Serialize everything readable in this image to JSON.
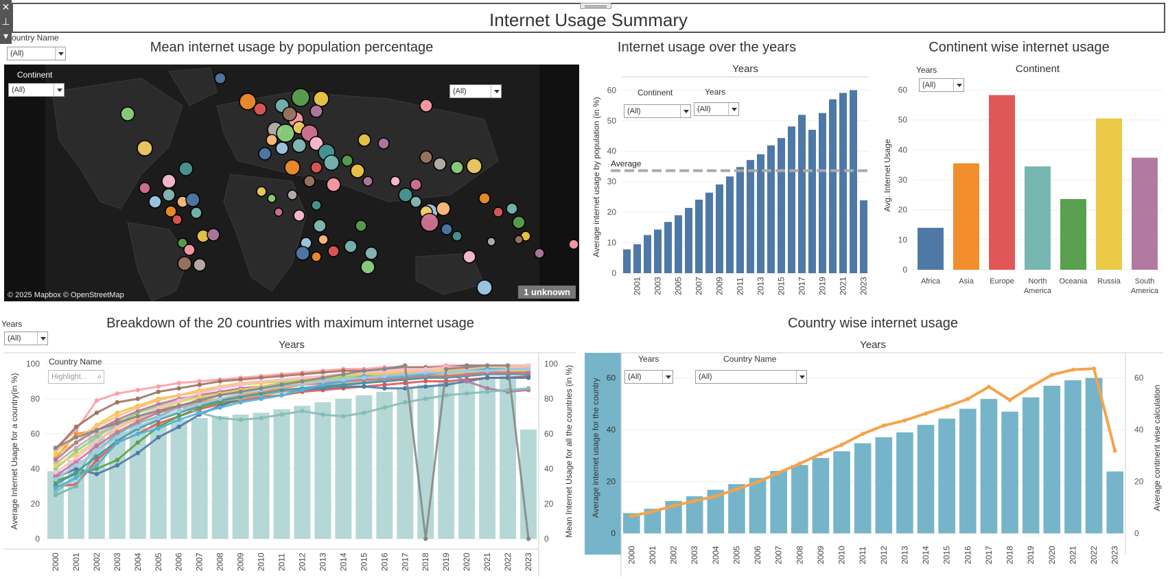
{
  "dashboard": {
    "title": "Internet Usage Summary"
  },
  "filters": {
    "country_name_label": "ountry Name",
    "continent_label": "Continent",
    "years_label": "Years",
    "all_value": "(All)",
    "highlight_placeholder": "Highlight..."
  },
  "map_sheet": {
    "title": "Mean internet usage by population percentage",
    "attribution": "© 2025 Mapbox © OpenStreetMap",
    "unknown_badge": "1 unknown"
  },
  "years_sheet": {
    "title": "Internet usage over the years",
    "header": "Years",
    "ylabel": "Average internet usage by population (in %)",
    "ref_line_label": "Average",
    "continent_filter_label": "Continent",
    "years_filter_label": "Years"
  },
  "continent_sheet": {
    "title": "Continent wise internet usage",
    "header": "Continent",
    "ylabel": "Avg. Internet Usage",
    "years_filter_label": "Years"
  },
  "top20_sheet": {
    "title": "Breakdown of the 20 countries with maximum internet usage",
    "header": "Years",
    "ylabel_left": "Average Internet Usage for a country(in %)",
    "ylabel_right": "Mean Internet Usage for all the countries (in %)",
    "years_filter_label": "Years",
    "country_filter_label": "Country Name"
  },
  "country_sheet": {
    "title": "Country wise internet usage",
    "header": "Years",
    "ylabel_left": "Average internet usage for the country",
    "ylabel_right": "Average continent wise calculation",
    "years_filter_label": "Years",
    "country_filter_label": "Country Name"
  },
  "colors": {
    "bar_blue": "#4e79a7",
    "bar_teal": "#76b5c9",
    "bar_pale_teal": "#b5d8d6",
    "line_orange": "#f5a34b",
    "ref_line": "#aaaaaa",
    "map_bg": "#111111",
    "map_land": "#2b2b2b"
  },
  "chart_data": [
    {
      "id": "years",
      "type": "bar",
      "categories": [
        "2000",
        "2001",
        "2002",
        "2003",
        "2004",
        "2005",
        "2006",
        "2007",
        "2008",
        "2009",
        "2010",
        "2011",
        "2012",
        "2013",
        "2014",
        "2015",
        "2016",
        "2017",
        "2018",
        "2019",
        "2020",
        "2021",
        "2022",
        "2023"
      ],
      "tick_labels": [
        "2001",
        "2003",
        "2005",
        "2007",
        "2009",
        "2011",
        "2013",
        "2015",
        "2017",
        "2019",
        "2021",
        "2023"
      ],
      "values": [
        7.8,
        9.5,
        12.5,
        14.3,
        16.8,
        19.0,
        21.4,
        24.1,
        26.4,
        29.1,
        31.7,
        34.8,
        37.1,
        39.0,
        41.9,
        44.3,
        48.1,
        51.9,
        47.0,
        52.5,
        57.0,
        59.1,
        60.0,
        23.9
      ],
      "average": 33.6,
      "ylim": [
        0,
        63
      ],
      "yticks": [
        0,
        10,
        20,
        30,
        40,
        50,
        60
      ],
      "grid": true
    },
    {
      "id": "continent",
      "type": "bar",
      "categories": [
        "Africa",
        "Asia",
        "Europe",
        "North America",
        "Oceania",
        "Russia",
        "South America"
      ],
      "values": [
        14.0,
        35.5,
        58.3,
        34.5,
        23.6,
        50.5,
        37.4
      ],
      "colors": [
        "#4e79a7",
        "#f28e2b",
        "#e15759",
        "#76b7b2",
        "#59a14f",
        "#edc948",
        "#b07aa1"
      ],
      "ylim": [
        0,
        63
      ],
      "yticks": [
        0,
        10,
        20,
        30,
        40,
        50,
        60
      ],
      "grid": true
    },
    {
      "id": "top20",
      "type": "bar",
      "categories": [
        "2000",
        "2001",
        "2002",
        "2003",
        "2004",
        "2005",
        "2006",
        "2007",
        "2008",
        "2009",
        "2010",
        "2011",
        "2012",
        "2013",
        "2014",
        "2015",
        "2016",
        "2017",
        "2018",
        "2019",
        "2020",
        "2021",
        "2022",
        "2023"
      ],
      "bars": [
        38.7,
        45,
        59,
        62,
        66,
        67,
        68,
        69,
        70,
        71,
        72,
        74,
        76,
        78,
        80,
        82,
        84,
        86,
        88,
        90,
        91,
        92,
        93,
        62.5
      ],
      "series": [
        {
          "color": "#e15759",
          "values": [
            30,
            31,
            45,
            55,
            60,
            66,
            70,
            74,
            77,
            79,
            81,
            82,
            84,
            85,
            86,
            87,
            88,
            89,
            90,
            90,
            91,
            92,
            92,
            93
          ]
        },
        {
          "color": "#4e79a7",
          "values": [
            35,
            40,
            37,
            42,
            49,
            58,
            64,
            71,
            76,
            80,
            82,
            84,
            85,
            86,
            87,
            87,
            86,
            86,
            87,
            88,
            90,
            92,
            92,
            92
          ]
        },
        {
          "color": "#f28e2b",
          "values": [
            46,
            60,
            62,
            67,
            70,
            73,
            75,
            78,
            80,
            82,
            84,
            86,
            88,
            89,
            90,
            91,
            92,
            93,
            94,
            94,
            95,
            96,
            96,
            96
          ]
        },
        {
          "color": "#59a14f",
          "values": [
            33,
            37,
            40,
            45,
            55,
            64,
            70,
            75,
            78,
            80,
            82,
            84,
            86,
            87,
            88,
            89,
            90,
            91,
            92,
            93,
            94,
            95,
            95,
            95
          ]
        },
        {
          "color": "#76b7b2",
          "values": [
            25,
            30,
            50,
            60,
            66,
            70,
            75,
            80,
            83,
            85,
            87,
            88,
            89,
            90,
            91,
            92,
            93,
            93,
            94,
            94,
            95,
            96,
            96,
            97
          ]
        },
        {
          "color": "#edc948",
          "values": [
            48,
            55,
            65,
            72,
            76,
            80,
            82,
            84,
            86,
            88,
            89,
            90,
            91,
            92,
            93,
            94,
            94,
            95,
            95,
            96,
            96,
            97,
            97,
            97
          ]
        },
        {
          "color": "#ff9da7",
          "values": [
            52,
            62,
            79,
            83,
            85,
            87,
            89,
            90,
            91,
            92,
            93,
            94,
            95,
            96,
            97,
            97,
            98,
            98,
            98,
            99,
            99,
            99,
            99,
            99
          ]
        },
        {
          "color": "#9c755f",
          "values": [
            51,
            64,
            72,
            78,
            80,
            84,
            86,
            88,
            90,
            91,
            92,
            93,
            94,
            95,
            96,
            96,
            97,
            98,
            98,
            98,
            99,
            99,
            99,
            99
          ]
        },
        {
          "color": "#8cd17d",
          "values": [
            40,
            50,
            58,
            66,
            72,
            76,
            79,
            82,
            84,
            86,
            87,
            89,
            90,
            91,
            92,
            93,
            93,
            94,
            94,
            95,
            95,
            96,
            96,
            96
          ]
        },
        {
          "color": "#b07aa1",
          "values": [
            45,
            55,
            62,
            68,
            73,
            77,
            80,
            82,
            84,
            86,
            87,
            88,
            89,
            90,
            91,
            92,
            93,
            94,
            94,
            95,
            90,
            86,
            84,
            85
          ]
        },
        {
          "color": "#86bcb6",
          "values": [
            27,
            35,
            55,
            65,
            70,
            74,
            76,
            72,
            69,
            68,
            69,
            71,
            73,
            71,
            70,
            72,
            75,
            78,
            80,
            82,
            83,
            84,
            85,
            86
          ]
        },
        {
          "color": "#bab0ac",
          "values": [
            43,
            52,
            60,
            65,
            68,
            72,
            75,
            77,
            79,
            80,
            82,
            84,
            86,
            88,
            89,
            90,
            91,
            92,
            93,
            94,
            95,
            95,
            96,
            96
          ]
        },
        {
          "color": "#f1ce63",
          "values": [
            42,
            48,
            56,
            63,
            69,
            74,
            78,
            81,
            83,
            85,
            87,
            88,
            89,
            90,
            91,
            92,
            92,
            93,
            94,
            94,
            95,
            95,
            96,
            96
          ]
        },
        {
          "color": "#499894",
          "values": [
            31,
            38,
            47,
            56,
            63,
            68,
            72,
            76,
            79,
            81,
            83,
            85,
            86,
            87,
            88,
            89,
            90,
            91,
            92,
            92,
            93,
            94,
            94,
            94
          ]
        },
        {
          "color": "#ffbe7d",
          "values": [
            50,
            58,
            64,
            70,
            75,
            79,
            82,
            85,
            87,
            89,
            90,
            91,
            92,
            93,
            94,
            95,
            95,
            96,
            96,
            97,
            97,
            98,
            98,
            98
          ]
        },
        {
          "color": "#d37295",
          "values": [
            36,
            44,
            53,
            61,
            67,
            72,
            76,
            79,
            82,
            84,
            86,
            87,
            88,
            89,
            90,
            91,
            91,
            92,
            93,
            93,
            94,
            95,
            95,
            95
          ]
        },
        {
          "color": "#fabfd2",
          "values": [
            38,
            46,
            56,
            64,
            70,
            75,
            79,
            83,
            86,
            88,
            90,
            91,
            92,
            93,
            94,
            95,
            96,
            97,
            97,
            98,
            98,
            99,
            99,
            99
          ]
        },
        {
          "color": "#4fb3d9",
          "values": [
            29,
            35,
            42,
            55,
            60,
            63,
            68,
            72,
            75,
            78,
            80,
            82,
            85,
            88,
            90,
            93,
            92,
            93,
            94,
            95,
            96,
            97,
            97,
            97
          ]
        },
        {
          "color": "#a0cbe8",
          "values": [
            34,
            42,
            50,
            58,
            64,
            69,
            73,
            77,
            80,
            83,
            85,
            87,
            88,
            90,
            91,
            92,
            93,
            94,
            95,
            95,
            96,
            96,
            97,
            97
          ]
        },
        {
          "color": "#888888",
          "values": [
            52,
            58,
            62,
            66,
            70,
            73,
            76,
            79,
            82,
            84,
            86,
            88,
            90,
            92,
            94,
            96,
            97,
            99,
            0,
            97,
            98,
            99,
            99,
            0
          ]
        }
      ],
      "ylim": [
        0,
        100
      ],
      "yticks": [
        0,
        20,
        40,
        60,
        80,
        100
      ],
      "grid": true
    },
    {
      "id": "country",
      "type": "bar",
      "categories": [
        "2000",
        "2001",
        "2002",
        "2003",
        "2004",
        "2005",
        "2006",
        "2007",
        "2008",
        "2009",
        "2010",
        "2011",
        "2012",
        "2013",
        "2014",
        "2015",
        "2016",
        "2017",
        "2018",
        "2019",
        "2020",
        "2021",
        "2022",
        "2023"
      ],
      "values": [
        7.8,
        9.5,
        12.5,
        14.3,
        16.8,
        19.0,
        21.4,
        24.1,
        26.4,
        29.1,
        31.7,
        34.8,
        37.1,
        39.0,
        41.9,
        44.3,
        48.1,
        51.9,
        47.0,
        52.5,
        57.0,
        59.1,
        60.0,
        23.9
      ],
      "line": [
        6.6,
        8.4,
        10.6,
        12.5,
        14.3,
        17.0,
        19.8,
        23.4,
        26.9,
        30.7,
        34.2,
        38.4,
        41.6,
        43.6,
        46.3,
        48.9,
        51.9,
        56.6,
        51.5,
        56.6,
        61.2,
        63.2,
        63.6,
        31.9
      ],
      "ylim": [
        0,
        66
      ],
      "yticks": [
        0,
        20,
        40,
        60
      ],
      "grid": true
    }
  ]
}
